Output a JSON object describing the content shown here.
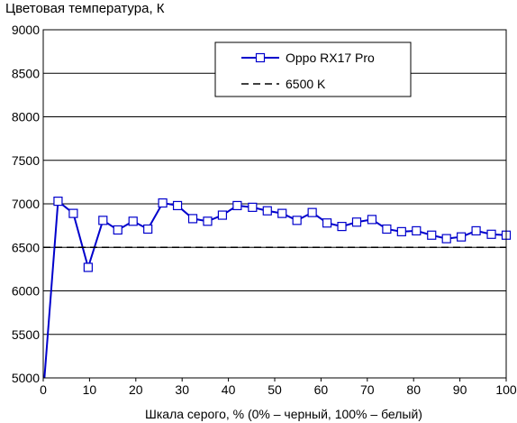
{
  "chart_data": {
    "type": "line",
    "title": "Цветовая температура, К",
    "xlabel": "Шкала серого, % (0% – черный, 100% – белый)",
    "ylabel": "Цветовая температура, К",
    "xlim": [
      0,
      100
    ],
    "ylim": [
      5000,
      9000
    ],
    "x_ticks": [
      0,
      10,
      20,
      30,
      40,
      50,
      60,
      70,
      80,
      90,
      100
    ],
    "y_ticks": [
      5000,
      5500,
      6000,
      6500,
      7000,
      7500,
      8000,
      8500,
      9000
    ],
    "x_tick_labels": [
      "0",
      "10",
      "20",
      "30",
      "40",
      "50",
      "60",
      "70",
      "80",
      "90",
      "100"
    ],
    "y_tick_labels": [
      "5000",
      "5500",
      "6000",
      "6500",
      "7000",
      "7500",
      "8000",
      "8500",
      "9000"
    ],
    "grid": "horizontal",
    "legend_position": "top-right",
    "series": [
      {
        "name": "Oppo RX17 Pro",
        "color": "#0000cc",
        "marker": "square",
        "x": [
          0,
          3.2,
          6.5,
          9.7,
          12.9,
          16.1,
          19.4,
          22.6,
          25.8,
          29.0,
          32.3,
          35.5,
          38.7,
          41.9,
          45.2,
          48.4,
          51.6,
          54.8,
          58.1,
          61.3,
          64.5,
          67.7,
          71.0,
          74.2,
          77.4,
          80.6,
          83.9,
          87.1,
          90.3,
          93.5,
          96.8,
          100
        ],
        "values": [
          4820,
          7030,
          6890,
          6270,
          6810,
          6700,
          6800,
          6710,
          7010,
          6980,
          6830,
          6800,
          6870,
          6980,
          6960,
          6920,
          6890,
          6810,
          6900,
          6780,
          6740,
          6790,
          6820,
          6710,
          6680,
          6690,
          6640,
          6600,
          6620,
          6690,
          6650,
          6640
        ]
      },
      {
        "name": "6500 K",
        "color": "#000000",
        "style": "dashed",
        "x": [
          0,
          100
        ],
        "values": [
          6500,
          6500
        ]
      }
    ]
  }
}
